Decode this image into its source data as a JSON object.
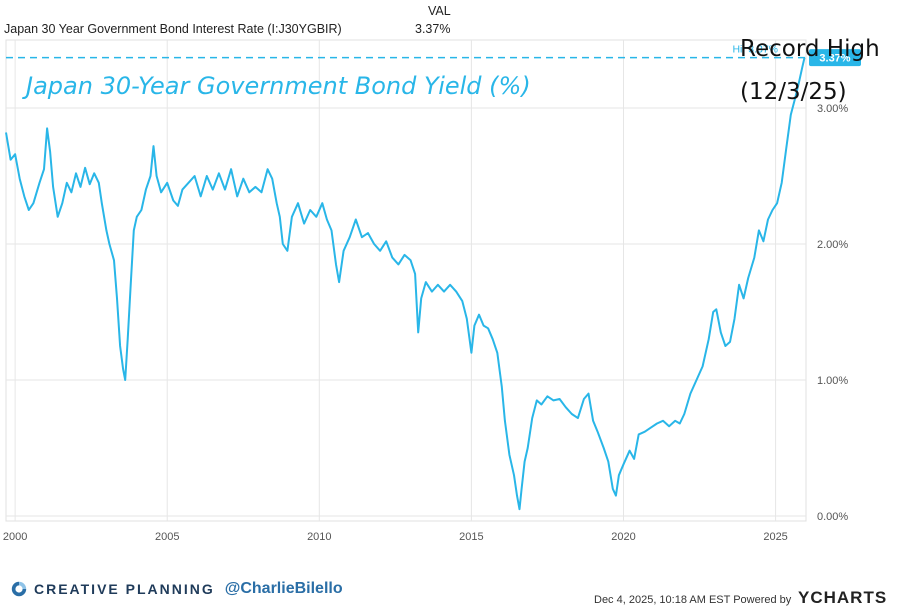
{
  "header": {
    "series_label": "Japan 30 Year Government Bond Interest Rate (I:J30YGBIR)",
    "val_label": "VAL",
    "val": "3.37%"
  },
  "annotation": {
    "line1": "Record High",
    "line2": "(12/3/25)"
  },
  "footer": {
    "brand_name": "CREATIVE PLANNING",
    "handle": "@CharlieBilello",
    "timestamp": "Dec 4, 2025, 10:18 AM EST Powered by",
    "logo_text": "YCHARTS",
    "brand_icon": "creative-planning-logo-icon"
  },
  "colors": {
    "line": "#29b6e8",
    "grid": "#e6e6e6",
    "title": "#29b6e8"
  },
  "chart_data": {
    "type": "line",
    "title": "Japan 30-Year Government Bond Yield (%)",
    "xlabel": "",
    "ylabel": "",
    "xlim": [
      1999.7,
      2026.0
    ],
    "ylim": [
      0.0,
      3.5
    ],
    "x_ticks": [
      2000,
      2005,
      2010,
      2015,
      2020,
      2025
    ],
    "x_tick_labels": [
      "2000",
      "2005",
      "2010",
      "2015",
      "2020",
      "2025"
    ],
    "y_ticks": [
      0,
      1,
      2,
      3
    ],
    "y_tick_labels": [
      "0.00%",
      "1.00%",
      "2.00%",
      "3.00%"
    ],
    "grid": true,
    "legend": "none",
    "hi_label": "Hi: 3.37%",
    "last_value_label": "3.37%",
    "hi_value": 3.37,
    "series": [
      {
        "name": "Japan 30 Year Government Bond Interest Rate (I:J30YGBIR)",
        "points": [
          [
            1999.7,
            2.82
          ],
          [
            1999.85,
            2.62
          ],
          [
            2000.0,
            2.66
          ],
          [
            2000.15,
            2.48
          ],
          [
            2000.3,
            2.35
          ],
          [
            2000.45,
            2.25
          ],
          [
            2000.6,
            2.3
          ],
          [
            2000.8,
            2.45
          ],
          [
            2000.95,
            2.55
          ],
          [
            2001.05,
            2.85
          ],
          [
            2001.15,
            2.68
          ],
          [
            2001.25,
            2.42
          ],
          [
            2001.4,
            2.2
          ],
          [
            2001.55,
            2.3
          ],
          [
            2001.7,
            2.45
          ],
          [
            2001.85,
            2.38
          ],
          [
            2002.0,
            2.52
          ],
          [
            2002.15,
            2.42
          ],
          [
            2002.3,
            2.56
          ],
          [
            2002.45,
            2.44
          ],
          [
            2002.6,
            2.52
          ],
          [
            2002.75,
            2.45
          ],
          [
            2002.85,
            2.3
          ],
          [
            2003.0,
            2.1
          ],
          [
            2003.1,
            2.0
          ],
          [
            2003.25,
            1.88
          ],
          [
            2003.35,
            1.6
          ],
          [
            2003.45,
            1.25
          ],
          [
            2003.55,
            1.08
          ],
          [
            2003.62,
            1.0
          ],
          [
            2003.7,
            1.3
          ],
          [
            2003.8,
            1.7
          ],
          [
            2003.9,
            2.1
          ],
          [
            2004.0,
            2.2
          ],
          [
            2004.15,
            2.25
          ],
          [
            2004.3,
            2.4
          ],
          [
            2004.45,
            2.5
          ],
          [
            2004.55,
            2.72
          ],
          [
            2004.65,
            2.5
          ],
          [
            2004.8,
            2.38
          ],
          [
            2005.0,
            2.45
          ],
          [
            2005.2,
            2.32
          ],
          [
            2005.35,
            2.28
          ],
          [
            2005.5,
            2.4
          ],
          [
            2005.7,
            2.45
          ],
          [
            2005.9,
            2.5
          ],
          [
            2006.1,
            2.35
          ],
          [
            2006.3,
            2.5
          ],
          [
            2006.5,
            2.4
          ],
          [
            2006.7,
            2.52
          ],
          [
            2006.9,
            2.4
          ],
          [
            2007.1,
            2.55
          ],
          [
            2007.3,
            2.35
          ],
          [
            2007.5,
            2.48
          ],
          [
            2007.7,
            2.38
          ],
          [
            2007.9,
            2.42
          ],
          [
            2008.1,
            2.38
          ],
          [
            2008.3,
            2.55
          ],
          [
            2008.45,
            2.48
          ],
          [
            2008.6,
            2.3
          ],
          [
            2008.7,
            2.2
          ],
          [
            2008.8,
            2.0
          ],
          [
            2008.95,
            1.95
          ],
          [
            2009.1,
            2.2
          ],
          [
            2009.3,
            2.3
          ],
          [
            2009.5,
            2.15
          ],
          [
            2009.7,
            2.25
          ],
          [
            2009.9,
            2.2
          ],
          [
            2010.1,
            2.3
          ],
          [
            2010.25,
            2.18
          ],
          [
            2010.4,
            2.1
          ],
          [
            2010.55,
            1.85
          ],
          [
            2010.65,
            1.72
          ],
          [
            2010.8,
            1.95
          ],
          [
            2011.0,
            2.05
          ],
          [
            2011.2,
            2.18
          ],
          [
            2011.4,
            2.05
          ],
          [
            2011.6,
            2.08
          ],
          [
            2011.8,
            2.0
          ],
          [
            2012.0,
            1.95
          ],
          [
            2012.2,
            2.02
          ],
          [
            2012.4,
            1.9
          ],
          [
            2012.6,
            1.85
          ],
          [
            2012.8,
            1.92
          ],
          [
            2013.0,
            1.88
          ],
          [
            2013.15,
            1.78
          ],
          [
            2013.25,
            1.35
          ],
          [
            2013.35,
            1.6
          ],
          [
            2013.5,
            1.72
          ],
          [
            2013.7,
            1.65
          ],
          [
            2013.9,
            1.7
          ],
          [
            2014.1,
            1.65
          ],
          [
            2014.3,
            1.7
          ],
          [
            2014.5,
            1.65
          ],
          [
            2014.7,
            1.58
          ],
          [
            2014.85,
            1.45
          ],
          [
            2015.0,
            1.2
          ],
          [
            2015.1,
            1.4
          ],
          [
            2015.25,
            1.48
          ],
          [
            2015.4,
            1.4
          ],
          [
            2015.55,
            1.38
          ],
          [
            2015.7,
            1.3
          ],
          [
            2015.85,
            1.2
          ],
          [
            2016.0,
            0.95
          ],
          [
            2016.1,
            0.7
          ],
          [
            2016.25,
            0.45
          ],
          [
            2016.4,
            0.3
          ],
          [
            2016.5,
            0.15
          ],
          [
            2016.58,
            0.05
          ],
          [
            2016.65,
            0.2
          ],
          [
            2016.75,
            0.4
          ],
          [
            2016.85,
            0.5
          ],
          [
            2017.0,
            0.72
          ],
          [
            2017.15,
            0.85
          ],
          [
            2017.3,
            0.82
          ],
          [
            2017.5,
            0.88
          ],
          [
            2017.7,
            0.85
          ],
          [
            2017.9,
            0.86
          ],
          [
            2018.1,
            0.8
          ],
          [
            2018.3,
            0.75
          ],
          [
            2018.5,
            0.72
          ],
          [
            2018.7,
            0.86
          ],
          [
            2018.85,
            0.9
          ],
          [
            2019.0,
            0.7
          ],
          [
            2019.15,
            0.62
          ],
          [
            2019.35,
            0.5
          ],
          [
            2019.5,
            0.4
          ],
          [
            2019.65,
            0.2
          ],
          [
            2019.75,
            0.15
          ],
          [
            2019.85,
            0.3
          ],
          [
            2020.0,
            0.38
          ],
          [
            2020.2,
            0.48
          ],
          [
            2020.35,
            0.42
          ],
          [
            2020.5,
            0.6
          ],
          [
            2020.7,
            0.62
          ],
          [
            2020.9,
            0.65
          ],
          [
            2021.1,
            0.68
          ],
          [
            2021.3,
            0.7
          ],
          [
            2021.5,
            0.66
          ],
          [
            2021.7,
            0.7
          ],
          [
            2021.85,
            0.68
          ],
          [
            2022.0,
            0.75
          ],
          [
            2022.2,
            0.9
          ],
          [
            2022.4,
            1.0
          ],
          [
            2022.6,
            1.1
          ],
          [
            2022.8,
            1.3
          ],
          [
            2022.95,
            1.5
          ],
          [
            2023.05,
            1.52
          ],
          [
            2023.2,
            1.35
          ],
          [
            2023.35,
            1.25
          ],
          [
            2023.5,
            1.28
          ],
          [
            2023.65,
            1.45
          ],
          [
            2023.8,
            1.7
          ],
          [
            2023.95,
            1.6
          ],
          [
            2024.1,
            1.75
          ],
          [
            2024.3,
            1.9
          ],
          [
            2024.45,
            2.1
          ],
          [
            2024.6,
            2.02
          ],
          [
            2024.75,
            2.18
          ],
          [
            2024.9,
            2.25
          ],
          [
            2025.05,
            2.3
          ],
          [
            2025.2,
            2.45
          ],
          [
            2025.35,
            2.7
          ],
          [
            2025.5,
            2.95
          ],
          [
            2025.65,
            3.08
          ],
          [
            2025.78,
            3.2
          ],
          [
            2025.88,
            3.3
          ],
          [
            2025.95,
            3.37
          ]
        ]
      }
    ]
  }
}
